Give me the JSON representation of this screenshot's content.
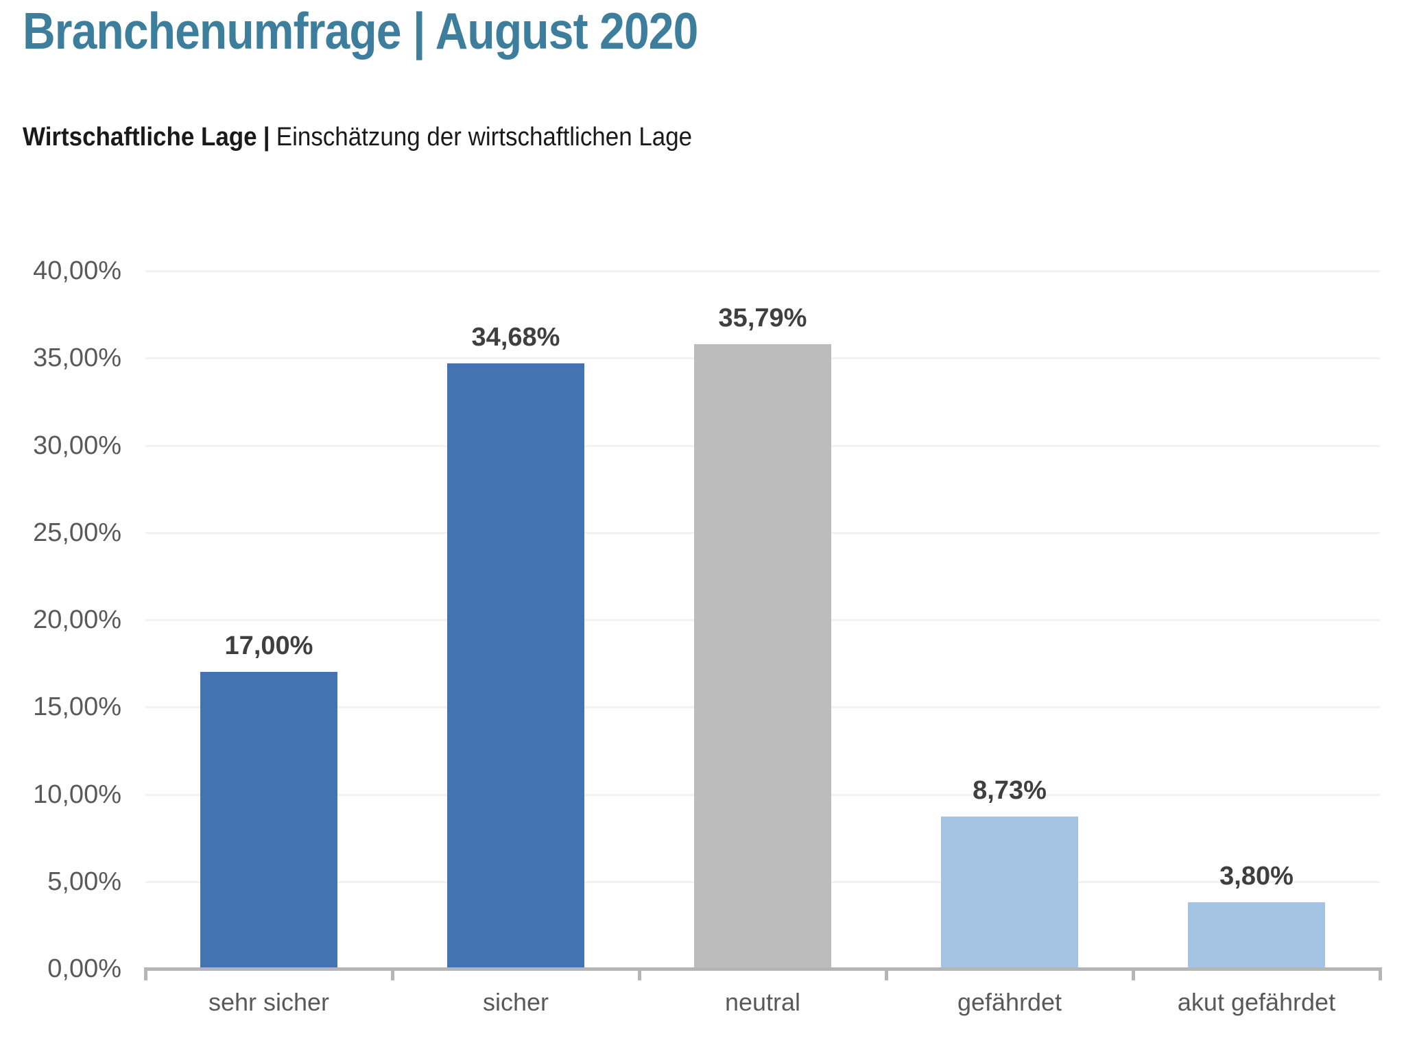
{
  "page": {
    "title": "Branchenumfrage | August 2020",
    "subtitle_bold": "Wirtschaftliche Lage",
    "subtitle_separator": "|",
    "subtitle_rest": "Einschätzung der wirtschaftlichen Lage"
  },
  "colors": {
    "title": "#3d7e9c",
    "subtitle": "#1a1a1a",
    "data_label": "#3f3f3f",
    "axis_label": "#595959",
    "gridline": "#f2f2f2",
    "axis_line": "#b5b5b5"
  },
  "chart_data": {
    "type": "bar",
    "categories": [
      "sehr sicher",
      "sicher",
      "neutral",
      "gefährdet",
      "akut gefährdet"
    ],
    "values": [
      17.0,
      34.68,
      35.79,
      8.73,
      3.8
    ],
    "value_labels": [
      "17,00%",
      "34,68%",
      "35,79%",
      "8,73%",
      "3,80%"
    ],
    "bar_colors": [
      "#4373b1",
      "#4373b1",
      "#bcbcbc",
      "#a5c4e4",
      "#a5c4e4"
    ],
    "title": "",
    "xlabel": "",
    "ylabel": "",
    "ylim": [
      0,
      40
    ],
    "ytick_step": 5,
    "ytick_labels": [
      "0,00%",
      "5,00%",
      "10,00%",
      "15,00%",
      "20,00%",
      "25,00%",
      "30,00%",
      "35,00%",
      "40,00%"
    ],
    "grid": true,
    "legend": false
  }
}
